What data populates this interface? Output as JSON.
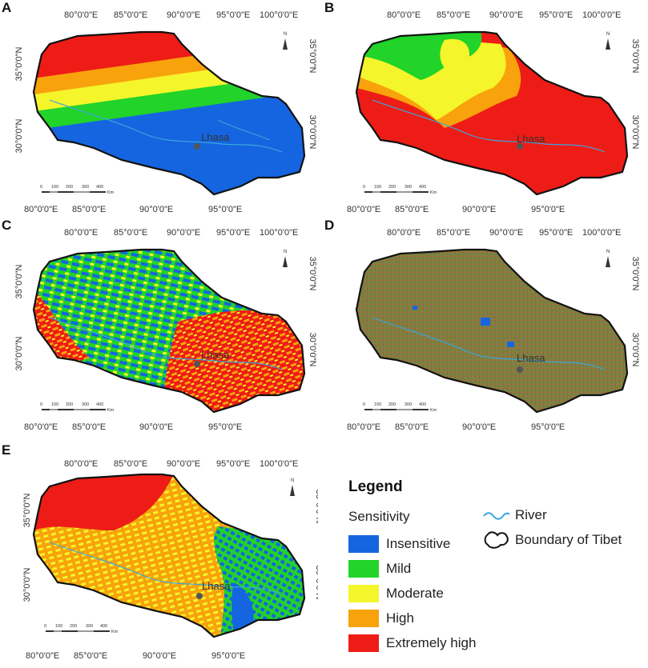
{
  "panels": [
    {
      "id": "A",
      "letter": "A",
      "city": "Lhasa",
      "lon_labels": [
        "80°0'0\"E",
        "85°0'0\"E",
        "90°0'0\"E",
        "95°0'0\"E",
        "100°0'0\"E"
      ],
      "lat_labels": [
        "35°0'0\"N",
        "30°0'0\"N"
      ],
      "scale_labels": [
        "0",
        "100",
        "200",
        "300",
        "400",
        "Km"
      ],
      "north_label": "N"
    },
    {
      "id": "B",
      "letter": "B",
      "city": "Lhasa",
      "lon_labels": [
        "80°0'0\"E",
        "85°0'0\"E",
        "90°0'0\"E",
        "95°0'0\"E",
        "100°0'0\"E"
      ],
      "lat_labels": [
        "35°0'0\"N",
        "30°0'0\"N"
      ],
      "scale_labels": [
        "0",
        "100",
        "200",
        "300",
        "400",
        "Km"
      ],
      "north_label": "N"
    },
    {
      "id": "C",
      "letter": "C",
      "city": "Lhasa",
      "lon_labels": [
        "80°0'0\"E",
        "85°0'0\"E",
        "90°0'0\"E",
        "95°0'0\"E",
        "100°0'0\"E"
      ],
      "lat_labels": [
        "35°0'0\"N",
        "30°0'0\"N"
      ],
      "scale_labels": [
        "0",
        "100",
        "200",
        "300",
        "400",
        "Km"
      ],
      "north_label": "N"
    },
    {
      "id": "D",
      "letter": "D",
      "city": "Lhasa",
      "lon_labels": [
        "80°0'0\"E",
        "85°0'0\"E",
        "90°0'0\"E",
        "95°0'0\"E",
        "100°0'0\"E"
      ],
      "lat_labels": [
        "35°0'0\"N",
        "30°0'0\"N"
      ],
      "scale_labels": [
        "0",
        "100",
        "200",
        "300",
        "400",
        "Km"
      ],
      "north_label": "N"
    },
    {
      "id": "E",
      "letter": "E",
      "city": "Lhasa",
      "lon_labels": [
        "80°0'0\"E",
        "85°0'0\"E",
        "90°0'0\"E",
        "95°0'0\"E",
        "100°0'0\"E"
      ],
      "lat_labels": [
        "35°0'0\"N",
        "30°0'0\"N"
      ],
      "scale_labels": [
        "0",
        "100",
        "200",
        "300",
        "400",
        "Km"
      ],
      "north_label": "N"
    }
  ],
  "legend": {
    "title": "Legend",
    "subtitle": "Sensitivity",
    "classes": [
      {
        "label": "Insensitive",
        "color": "#1565e0"
      },
      {
        "label": "Mild",
        "color": "#22d32a"
      },
      {
        "label": "Moderate",
        "color": "#f4f52a"
      },
      {
        "label": "High",
        "color": "#f8a20c"
      },
      {
        "label": "Extremely high",
        "color": "#ee1c16"
      }
    ],
    "symbols": [
      {
        "label": "River",
        "icon": "river-line-icon",
        "color": "#3aa6dc"
      },
      {
        "label": "Boundary of Tibet",
        "icon": "boundary-outline-icon",
        "color": "#111111"
      }
    ]
  },
  "colors": {
    "insensitive": "#1565e0",
    "mild": "#22d32a",
    "moderate": "#f4f52a",
    "high": "#f8a20c",
    "extremely_high": "#ee1c16",
    "river": "#3aa6dc",
    "boundary": "#111111",
    "panel_d_base": "#8c7b3d"
  }
}
